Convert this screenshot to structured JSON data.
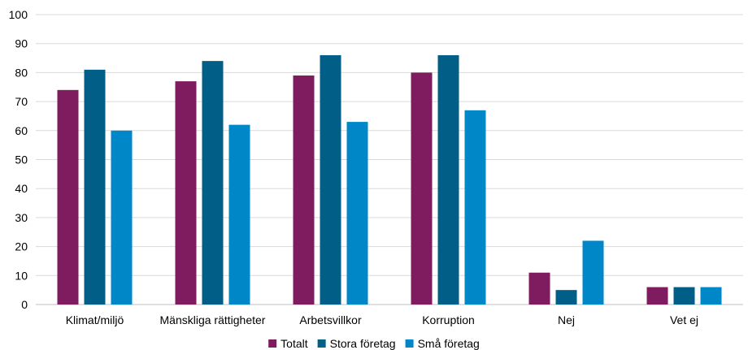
{
  "chart_data": {
    "type": "bar",
    "categories": [
      "Klimat/miljö",
      "Mänskliga rättigheter",
      "Arbetsvillkor",
      "Korruption",
      "Nej",
      "Vet ej"
    ],
    "series": [
      {
        "name": "Totalt",
        "color": "#7f1b5f",
        "values": [
          74,
          77,
          79,
          80,
          11,
          6
        ]
      },
      {
        "name": "Stora företag",
        "color": "#005e87",
        "values": [
          81,
          84,
          86,
          86,
          5,
          6
        ]
      },
      {
        "name": "Små företag",
        "color": "#0087c8",
        "values": [
          60,
          62,
          63,
          67,
          22,
          6
        ]
      }
    ],
    "yticks": [
      0,
      10,
      20,
      30,
      40,
      50,
      60,
      70,
      80,
      90,
      100
    ],
    "ylim": [
      0,
      100
    ],
    "grid": true,
    "legend_position": "bottom-center",
    "gridline_color": "#d9d9d9",
    "axis_color": "#bfbfbf"
  }
}
